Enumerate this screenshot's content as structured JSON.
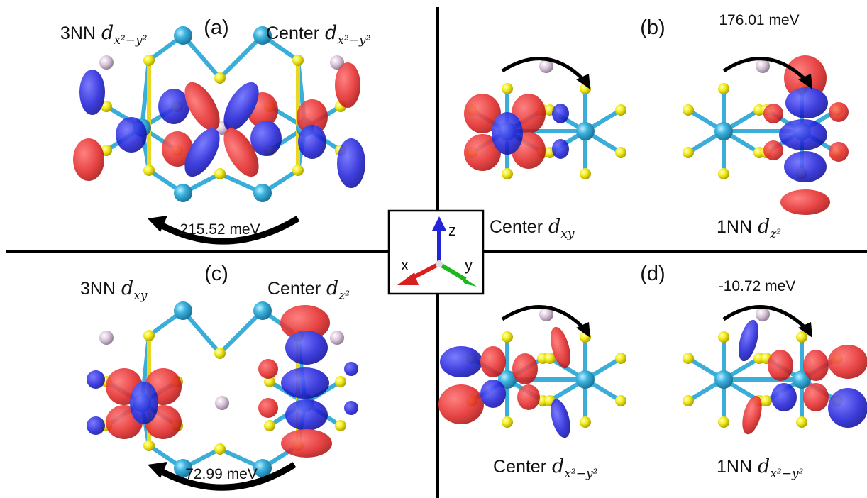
{
  "panels": [
    {
      "label": "(a)",
      "hopping": "215.52 meV",
      "orbitals": [
        {
          "site": "3NN",
          "orbital": "d",
          "subscript": "x²−y²"
        },
        {
          "site": "Center",
          "orbital": "d",
          "subscript": "x²−y²"
        }
      ]
    },
    {
      "label": "(b)",
      "hopping": "176.01 meV",
      "orbitals": [
        {
          "site": "Center",
          "orbital": "d",
          "subscript": "xy"
        },
        {
          "site": "1NN",
          "orbital": "d",
          "subscript": "z²"
        }
      ]
    },
    {
      "label": "(c)",
      "hopping": "72.99 meV",
      "orbitals": [
        {
          "site": "3NN",
          "orbital": "d",
          "subscript": "xy"
        },
        {
          "site": "Center",
          "orbital": "d",
          "subscript": "z²"
        }
      ]
    },
    {
      "label": "(d)",
      "hopping": "-10.72 meV",
      "orbitals": [
        {
          "site": "Center",
          "orbital": "d",
          "subscript": "x²−y²"
        },
        {
          "site": "1NN",
          "orbital": "d",
          "subscript": "x²−y²"
        }
      ]
    }
  ],
  "axes": {
    "x": "x",
    "y": "y",
    "z": "z"
  }
}
